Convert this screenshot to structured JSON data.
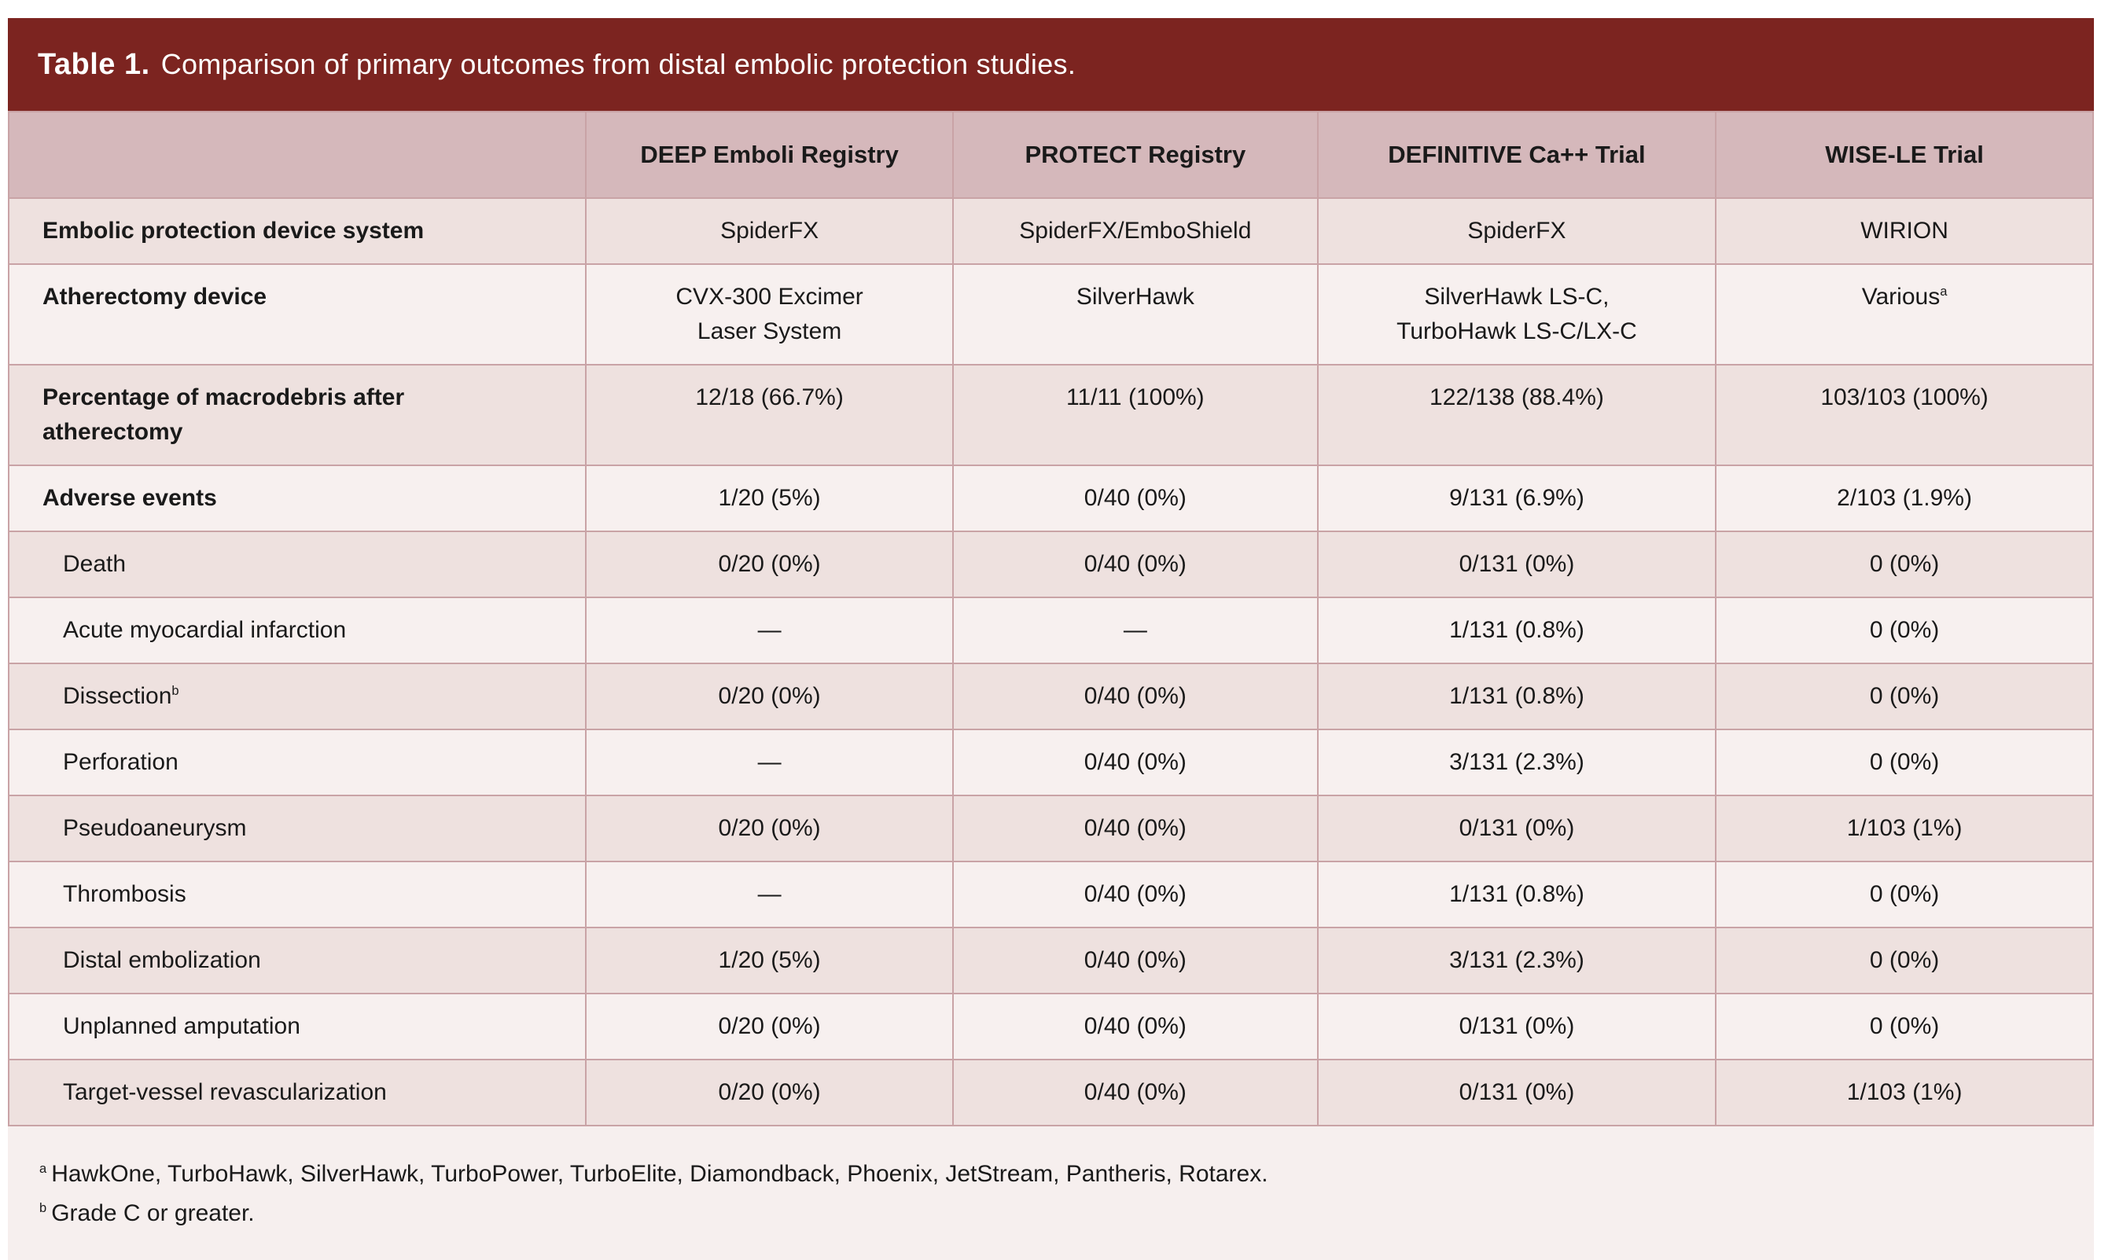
{
  "title": {
    "prefix": "Table 1.",
    "text": "Comparison of primary outcomes from distal embolic protection studies."
  },
  "table": {
    "column_headers": [
      "",
      "DEEP Emboli Registry",
      "PROTECT Registry",
      "DEFINITIVE Ca++ Trial",
      "WISE-LE Trial"
    ],
    "rows": [
      {
        "label": "Embolic protection device system",
        "bold": true,
        "indent": false,
        "values": [
          "SpiderFX",
          "SpiderFX/EmboShield",
          "SpiderFX",
          "WIRION"
        ]
      },
      {
        "label": "Atherectomy device",
        "bold": true,
        "indent": false,
        "values": [
          "CVX-300 Excimer\nLaser System",
          "SilverHawk",
          "SilverHawk LS-C,\nTurboHawk LS-C/LX-C",
          "Various^a"
        ]
      },
      {
        "label": "Percentage of macrodebris after\natherectomy",
        "bold": true,
        "indent": false,
        "values": [
          "12/18 (66.7%)",
          "11/11 (100%)",
          "122/138 (88.4%)",
          "103/103 (100%)"
        ]
      },
      {
        "label": "Adverse events",
        "bold": true,
        "indent": false,
        "values": [
          "1/20 (5%)",
          "0/40 (0%)",
          "9/131 (6.9%)",
          "2/103 (1.9%)"
        ]
      },
      {
        "label": "Death",
        "bold": false,
        "indent": true,
        "values": [
          "0/20 (0%)",
          "0/40 (0%)",
          "0/131 (0%)",
          "0 (0%)"
        ]
      },
      {
        "label": "Acute myocardial infarction",
        "bold": false,
        "indent": true,
        "values": [
          "—",
          "—",
          "1/131 (0.8%)",
          "0 (0%)"
        ]
      },
      {
        "label": "Dissection^b",
        "bold": false,
        "indent": true,
        "values": [
          "0/20 (0%)",
          "0/40 (0%)",
          "1/131 (0.8%)",
          "0 (0%)"
        ]
      },
      {
        "label": "Perforation",
        "bold": false,
        "indent": true,
        "values": [
          "—",
          "0/40 (0%)",
          "3/131 (2.3%)",
          "0 (0%)"
        ]
      },
      {
        "label": "Pseudoaneurysm",
        "bold": false,
        "indent": true,
        "values": [
          "0/20 (0%)",
          "0/40 (0%)",
          "0/131 (0%)",
          "1/103 (1%)"
        ]
      },
      {
        "label": "Thrombosis",
        "bold": false,
        "indent": true,
        "values": [
          "—",
          "0/40 (0%)",
          "1/131 (0.8%)",
          "0 (0%)"
        ]
      },
      {
        "label": "Distal embolization",
        "bold": false,
        "indent": true,
        "values": [
          "1/20 (5%)",
          "0/40 (0%)",
          "3/131 (2.3%)",
          "0 (0%)"
        ]
      },
      {
        "label": "Unplanned amputation",
        "bold": false,
        "indent": true,
        "values": [
          "0/20 (0%)",
          "0/40 (0%)",
          "0/131 (0%)",
          "0 (0%)"
        ]
      },
      {
        "label": "Target-vessel revascularization",
        "bold": false,
        "indent": true,
        "values": [
          "0/20 (0%)",
          "0/40 (0%)",
          "0/131 (0%)",
          "1/103 (1%)"
        ]
      }
    ]
  },
  "footnotes": [
    {
      "sup": "a",
      "text": "HawkOne, TurboHawk, SilverHawk, TurboPower, TurboElite, Diamondback, Phoenix, JetStream, Pantheris, Rotarex."
    },
    {
      "sup": "b",
      "text": "Grade C or greater."
    }
  ],
  "colors": {
    "title_bar": "#7c2420",
    "header_row": "#d5b8bb",
    "row_dark": "#eee1df",
    "row_light": "#f7f0ef",
    "border": "#c9a3a6",
    "footnote_bg": "#f6efee",
    "title_text": "#ffffff",
    "body_text": "#1a1a1a"
  }
}
